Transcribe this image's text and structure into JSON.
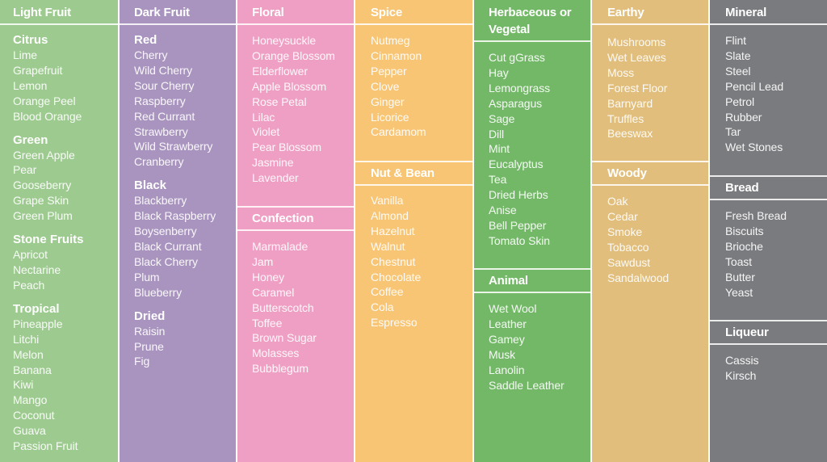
{
  "colors": {
    "light_fruit": "#9dcb8f",
    "dark_fruit": "#a894be",
    "floral": "#f09fc4",
    "spice": "#f8c574",
    "herbaceous": "#72b866",
    "earthy": "#e1be7c",
    "mineral": "#7a7b7e",
    "divider": "#ffffff"
  },
  "light_fruit": {
    "title": "Light Fruit",
    "groups": [
      {
        "name": "Citrus",
        "items": [
          "Lime",
          "Grapefruit",
          "Lemon",
          "Orange Peel",
          "Blood Orange"
        ]
      },
      {
        "name": "Green",
        "items": [
          "Green Apple",
          "Pear",
          "Gooseberry",
          "Grape Skin",
          "Green Plum"
        ]
      },
      {
        "name": "Stone Fruits",
        "items": [
          "Apricot",
          "Nectarine",
          "Peach"
        ]
      },
      {
        "name": "Tropical",
        "items": [
          "Pineapple",
          "Litchi",
          "Melon",
          "Banana",
          "Kiwi",
          "Mango",
          "Coconut",
          "Guava",
          "Passion Fruit"
        ]
      }
    ]
  },
  "dark_fruit": {
    "title": "Dark Fruit",
    "groups": [
      {
        "name": "Red",
        "items": [
          "Cherry",
          "Wild Cherry",
          "Sour Cherry",
          "Raspberry",
          "Red Currant",
          "Strawberry",
          "Wild Strawberry",
          "Cranberry"
        ]
      },
      {
        "name": "Black",
        "items": [
          "Blackberry",
          "Black Raspberry",
          "Boysenberry",
          "Black Currant",
          "Black Cherry",
          "Plum",
          "Blueberry"
        ]
      },
      {
        "name": "Dried",
        "items": [
          "Raisin",
          "Prune",
          "Fig"
        ]
      }
    ]
  },
  "floral": {
    "title": "Floral",
    "items": [
      "Honeysuckle",
      "Orange Blossom",
      "Elderflower",
      "Apple Blossom",
      "Rose Petal",
      "Lilac",
      "Violet",
      "Pear Blossom",
      "Jasmine",
      "Lavender"
    ]
  },
  "confection": {
    "title": "Confection",
    "items": [
      "Marmalade",
      "Jam",
      "Honey",
      "Caramel",
      "Butterscotch",
      "Toffee",
      "Brown Sugar",
      "Molasses",
      "Bubblegum"
    ]
  },
  "spice": {
    "title": "Spice",
    "items": [
      "Nutmeg",
      "Cinnamon",
      "Pepper",
      "Clove",
      "Ginger",
      "Licorice",
      "Cardamom"
    ]
  },
  "nut_bean": {
    "title": "Nut & Bean",
    "items": [
      "Vanilla",
      "Almond",
      "Hazelnut",
      "Walnut",
      "Chestnut",
      "Chocolate",
      "Coffee",
      "Cola",
      "Espresso"
    ]
  },
  "herbaceous": {
    "title_line1": "Herbaceous or",
    "title_line2": "Vegetal",
    "items": [
      "Cut gGrass",
      "Hay",
      "Lemongrass",
      "Asparagus",
      "Sage",
      "Dill",
      "Mint",
      "Eucalyptus",
      "Tea",
      "Dried Herbs",
      "Anise",
      "Bell Pepper",
      "Tomato Skin"
    ]
  },
  "animal": {
    "title": "Animal",
    "items": [
      "Wet Wool",
      "Leather",
      "Gamey",
      "Musk",
      "Lanolin",
      "Saddle Leather"
    ]
  },
  "earthy": {
    "title": "Earthy",
    "items": [
      "Mushrooms",
      "Wet Leaves",
      "Moss",
      "Forest Floor",
      "Barnyard",
      "Truffles",
      "Beeswax"
    ]
  },
  "woody": {
    "title": "Woody",
    "items": [
      "Oak",
      "Cedar",
      "Smoke",
      "Tobacco",
      "Sawdust",
      "Sandalwood"
    ]
  },
  "mineral": {
    "title": "Mineral",
    "items": [
      "Flint",
      "Slate",
      "Steel",
      "Pencil Lead",
      "Petrol",
      "Rubber",
      "Tar",
      "Wet Stones"
    ]
  },
  "bread": {
    "title": "Bread",
    "items": [
      "Fresh Bread",
      "Biscuits",
      "Brioche",
      "Toast",
      "Butter",
      "Yeast"
    ]
  },
  "liqueur": {
    "title": "Liqueur",
    "items": [
      "Cassis",
      "Kirsch"
    ]
  }
}
